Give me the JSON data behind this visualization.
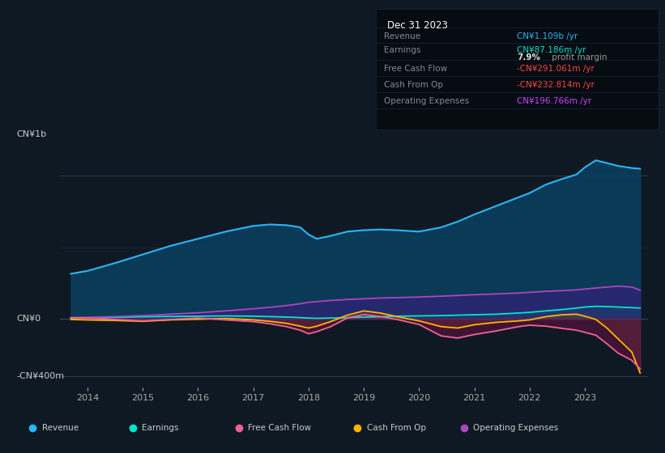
{
  "background_color": "#0e1923",
  "plot_bg_color": "#0e1923",
  "info_box_bg": "#050c12",
  "title_box": {
    "date": "Dec 31 2023",
    "rows": [
      {
        "label": "Revenue",
        "value": "CN¥1.109b /yr",
        "value_color": "#29b6f6"
      },
      {
        "label": "Earnings",
        "value": "CN¥87.186m /yr",
        "value_color": "#00e5cc"
      },
      {
        "label": "",
        "value": "7.9% profit margin",
        "value_color": "#aaaaaa"
      },
      {
        "label": "Free Cash Flow",
        "value": "-CN¥291.061m /yr",
        "value_color": "#ff4444"
      },
      {
        "label": "Cash From Op",
        "value": "-CN¥232.814m /yr",
        "value_color": "#ff4444"
      },
      {
        "label": "Operating Expenses",
        "value": "CN¥196.766m /yr",
        "value_color": "#cc44ff"
      }
    ]
  },
  "ylabel_top": "CN¥1b",
  "ylabel_zero": "CN¥0",
  "ylabel_bottom": "-CN¥400m",
  "ylim": [
    -480000000,
    1280000000
  ],
  "y_cn1b": 1000000000,
  "y_zero": 0,
  "y_400m": -400000000,
  "xticks": [
    2014,
    2015,
    2016,
    2017,
    2018,
    2019,
    2020,
    2021,
    2022,
    2023
  ],
  "legend": [
    {
      "label": "Revenue",
      "color": "#29b6f6"
    },
    {
      "label": "Earnings",
      "color": "#00e5cc"
    },
    {
      "label": "Free Cash Flow",
      "color": "#f06292"
    },
    {
      "label": "Cash From Op",
      "color": "#ffb300"
    },
    {
      "label": "Operating Expenses",
      "color": "#ab47bc"
    }
  ],
  "series": {
    "years": [
      2013.7,
      2014.0,
      2014.5,
      2015.0,
      2015.5,
      2016.0,
      2016.5,
      2017.0,
      2017.3,
      2017.6,
      2017.85,
      2018.0,
      2018.15,
      2018.4,
      2018.7,
      2019.0,
      2019.3,
      2019.6,
      2020.0,
      2020.4,
      2020.7,
      2021.0,
      2021.4,
      2021.8,
      2022.0,
      2022.3,
      2022.6,
      2022.85,
      2023.0,
      2023.2,
      2023.4,
      2023.6,
      2023.85,
      2024.0
    ],
    "revenue": [
      315000000,
      335000000,
      390000000,
      450000000,
      510000000,
      560000000,
      610000000,
      650000000,
      660000000,
      655000000,
      640000000,
      590000000,
      560000000,
      580000000,
      610000000,
      620000000,
      625000000,
      620000000,
      610000000,
      640000000,
      680000000,
      730000000,
      790000000,
      850000000,
      880000000,
      940000000,
      980000000,
      1010000000,
      1060000000,
      1109000000,
      1090000000,
      1070000000,
      1055000000,
      1050000000
    ],
    "earnings": [
      5000000,
      6000000,
      10000000,
      14000000,
      16000000,
      18000000,
      20000000,
      18000000,
      15000000,
      12000000,
      8000000,
      5000000,
      3000000,
      5000000,
      8000000,
      12000000,
      14000000,
      18000000,
      20000000,
      22000000,
      25000000,
      28000000,
      32000000,
      40000000,
      45000000,
      55000000,
      65000000,
      75000000,
      82000000,
      87186000,
      85000000,
      82000000,
      78000000,
      75000000
    ],
    "op_expenses": [
      8000000,
      10000000,
      15000000,
      22000000,
      32000000,
      42000000,
      55000000,
      70000000,
      80000000,
      92000000,
      105000000,
      115000000,
      120000000,
      128000000,
      135000000,
      140000000,
      145000000,
      148000000,
      152000000,
      158000000,
      163000000,
      168000000,
      174000000,
      180000000,
      185000000,
      192000000,
      196766000,
      202000000,
      208000000,
      215000000,
      222000000,
      228000000,
      222000000,
      200000000
    ],
    "free_cash": [
      8000000,
      5000000,
      -5000000,
      -15000000,
      -5000000,
      5000000,
      -8000000,
      -20000000,
      -35000000,
      -55000000,
      -80000000,
      -105000000,
      -90000000,
      -55000000,
      5000000,
      30000000,
      15000000,
      -5000000,
      -40000000,
      -120000000,
      -135000000,
      -110000000,
      -85000000,
      -55000000,
      -45000000,
      -52000000,
      -68000000,
      -80000000,
      -95000000,
      -115000000,
      -175000000,
      -240000000,
      -291061000,
      -350000000
    ],
    "cash_from_op": [
      -5000000,
      -8000000,
      -12000000,
      -18000000,
      -8000000,
      -3000000,
      2000000,
      -8000000,
      -18000000,
      -32000000,
      -52000000,
      -65000000,
      -52000000,
      -20000000,
      25000000,
      55000000,
      40000000,
      15000000,
      -15000000,
      -55000000,
      -65000000,
      -42000000,
      -25000000,
      -15000000,
      -8000000,
      15000000,
      28000000,
      32000000,
      18000000,
      -5000000,
      -65000000,
      -140000000,
      -232814000,
      -380000000
    ]
  }
}
